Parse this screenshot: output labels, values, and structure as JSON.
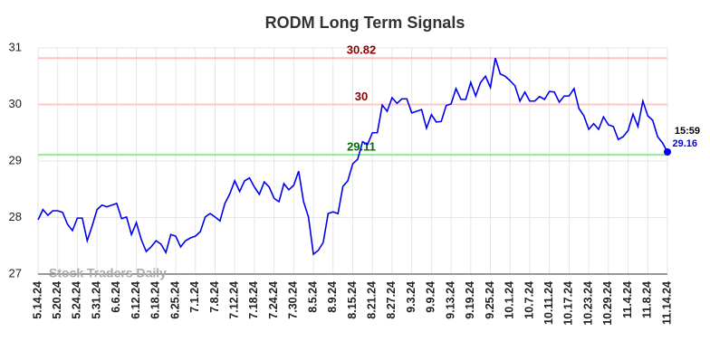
{
  "chart_data": {
    "type": "line",
    "title": "RODM Long Term Signals",
    "watermark": "Stock Traders Daily",
    "categories": [
      "5.14.24",
      null,
      null,
      null,
      "5.20.24",
      null,
      null,
      null,
      "5.24.24",
      null,
      null,
      null,
      "5.31.24",
      null,
      null,
      null,
      "6.6.24",
      null,
      null,
      null,
      "6.12.24",
      null,
      null,
      null,
      "6.18.24",
      null,
      null,
      null,
      "6.25.24",
      null,
      null,
      null,
      "7.1.24",
      null,
      null,
      null,
      "7.8.24",
      null,
      null,
      null,
      "7.12.24",
      null,
      null,
      null,
      "7.18.24",
      null,
      null,
      null,
      "7.24.24",
      null,
      null,
      null,
      "7.30.24",
      null,
      null,
      null,
      "8.5.24",
      null,
      null,
      null,
      "8.9.24",
      null,
      null,
      null,
      "8.15.24",
      null,
      null,
      null,
      "8.21.24",
      null,
      null,
      null,
      "8.27.24",
      null,
      null,
      null,
      "9.3.24",
      null,
      null,
      null,
      "9.9.24",
      null,
      null,
      null,
      "9.13.24",
      null,
      null,
      null,
      "9.19.24",
      null,
      null,
      null,
      "9.25.24",
      null,
      null,
      null,
      "10.1.24",
      null,
      null,
      null,
      "10.7.24",
      null,
      null,
      null,
      "10.11.24",
      null,
      null,
      null,
      "10.17.24",
      null,
      null,
      null,
      "10.23.24",
      null,
      null,
      null,
      "10.29.24",
      null,
      null,
      null,
      "11.4.24",
      null,
      null,
      null,
      "11.8.24",
      null,
      null,
      null,
      "11.14.24"
    ],
    "values": [
      27.96,
      28.14,
      28.04,
      28.12,
      28.12,
      28.09,
      27.88,
      27.77,
      27.99,
      27.99,
      27.59,
      27.85,
      28.14,
      28.22,
      28.19,
      28.22,
      28.25,
      27.98,
      28.01,
      27.7,
      27.91,
      27.61,
      27.4,
      27.48,
      27.59,
      27.53,
      27.38,
      27.7,
      27.67,
      27.48,
      27.59,
      27.64,
      27.67,
      27.75,
      28.01,
      28.07,
      28.01,
      27.94,
      28.25,
      28.42,
      28.65,
      28.46,
      28.65,
      28.7,
      28.54,
      28.41,
      28.63,
      28.54,
      28.34,
      28.28,
      28.6,
      28.49,
      28.57,
      28.82,
      28.28,
      28.01,
      27.35,
      27.42,
      27.56,
      28.07,
      28.1,
      28.07,
      28.55,
      28.65,
      28.95,
      29.03,
      29.34,
      29.29,
      29.5,
      29.5,
      29.99,
      29.88,
      30.12,
      30.02,
      30.1,
      30.1,
      29.85,
      29.88,
      29.91,
      29.58,
      29.82,
      29.69,
      29.7,
      29.98,
      30.01,
      30.28,
      30.09,
      30.09,
      30.39,
      30.15,
      30.39,
      30.5,
      30.3,
      30.82,
      30.54,
      30.5,
      30.42,
      30.33,
      30.06,
      30.22,
      30.06,
      30.06,
      30.14,
      30.09,
      30.23,
      30.22,
      30.04,
      30.15,
      30.15,
      30.28,
      29.93,
      29.8,
      29.56,
      29.66,
      29.56,
      29.78,
      29.64,
      29.61,
      29.38,
      29.43,
      29.54,
      29.83,
      29.61,
      30.06,
      29.8,
      29.72,
      29.43,
      29.32,
      29.16
    ],
    "color": "#0000ee",
    "last_time": "15:59",
    "hlines": [
      {
        "value": 30.82,
        "color": "#ffc4c4",
        "label_color": "#8b0000"
      },
      {
        "value": 30,
        "color": "#ffc4c4",
        "label_color": "#8b0000"
      },
      {
        "value": 29.11,
        "color": "#90ee90",
        "label_color": "#007000"
      }
    ],
    "ylim": [
      27,
      31
    ],
    "yticks": [
      27,
      28,
      29,
      30,
      31
    ],
    "grid": true
  }
}
